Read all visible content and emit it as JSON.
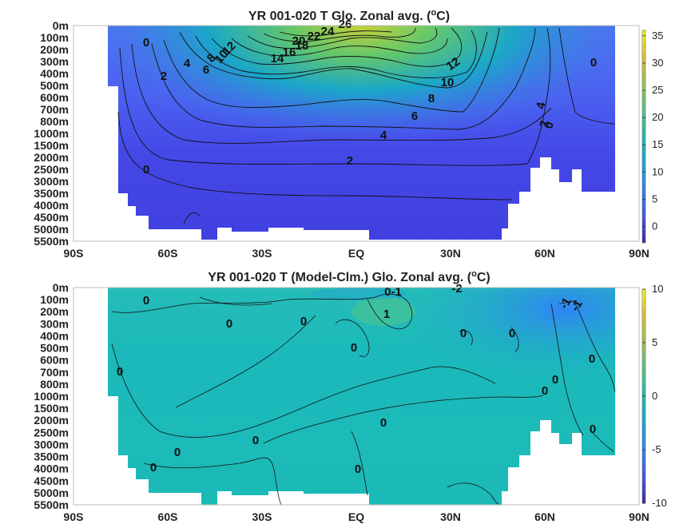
{
  "chart_data": [
    {
      "type": "heatmap",
      "title": "YR 001-020 T Glo. Zonal avg. (",
      "title_sup": "o",
      "title_end": "C)",
      "y_labels": [
        "0m",
        "100m",
        "200m",
        "300m",
        "400m",
        "500m",
        "600m",
        "700m",
        "800m",
        "1000m",
        "1500m",
        "2000m",
        "2500m",
        "3000m",
        "3500m",
        "4000m",
        "4500m",
        "5000m",
        "5500m"
      ],
      "x_labels": [
        "90S",
        "60S",
        "30S",
        "EQ",
        "30N",
        "60N",
        "90N"
      ],
      "colorbar": {
        "ticks": [
          "35",
          "30",
          "25",
          "20",
          "15",
          "10",
          "5",
          "0"
        ],
        "range": [
          -3,
          36
        ]
      },
      "contour_labels": [
        {
          "text": "0"
        },
        {
          "text": "4"
        },
        {
          "text": "6"
        },
        {
          "text": "8"
        },
        {
          "text": "10"
        },
        {
          "text": "12"
        },
        {
          "text": "2"
        },
        {
          "text": "14"
        },
        {
          "text": "16"
        },
        {
          "text": "18"
        },
        {
          "text": "20"
        },
        {
          "text": "22"
        },
        {
          "text": "24"
        },
        {
          "text": "26"
        },
        {
          "text": "12"
        },
        {
          "text": "10"
        },
        {
          "text": "8"
        },
        {
          "text": "6"
        },
        {
          "text": "4"
        },
        {
          "text": "2"
        },
        {
          "text": "0"
        },
        {
          "text": "0"
        },
        {
          "text": "4"
        },
        {
          "text": "2"
        },
        {
          "text": "0"
        }
      ]
    },
    {
      "type": "heatmap",
      "title": "YR 001-020 T (Model-Clm.) Glo. Zonal avg. (",
      "title_sup": "o",
      "title_end": "C)",
      "y_labels": [
        "0m",
        "100m",
        "200m",
        "300m",
        "400m",
        "500m",
        "600m",
        "700m",
        "800m",
        "1000m",
        "1500m",
        "2000m",
        "2500m",
        "3000m",
        "3500m",
        "4000m",
        "4500m",
        "5000m",
        "5500m"
      ],
      "x_labels": [
        "90S",
        "60S",
        "30S",
        "EQ",
        "30N",
        "60N",
        "90N"
      ],
      "colorbar": {
        "ticks": [
          "10",
          "5",
          "0",
          "-5",
          "-10"
        ],
        "range": [
          -10,
          10
        ]
      },
      "contour_labels": [
        {
          "text": "0"
        },
        {
          "text": "0"
        },
        {
          "text": "0"
        },
        {
          "text": "0-1"
        },
        {
          "text": "-2"
        },
        {
          "text": "1"
        },
        {
          "text": "0"
        },
        {
          "text": "0"
        },
        {
          "text": "0"
        },
        {
          "text": "0"
        },
        {
          "text": "0"
        },
        {
          "text": "0"
        },
        {
          "text": "0"
        },
        {
          "text": "0"
        },
        {
          "text": "0"
        },
        {
          "text": "0"
        },
        {
          "text": "0"
        },
        {
          "text": "0"
        },
        {
          "text": "-1"
        },
        {
          "text": "-1"
        },
        {
          "text": "0"
        }
      ]
    }
  ]
}
